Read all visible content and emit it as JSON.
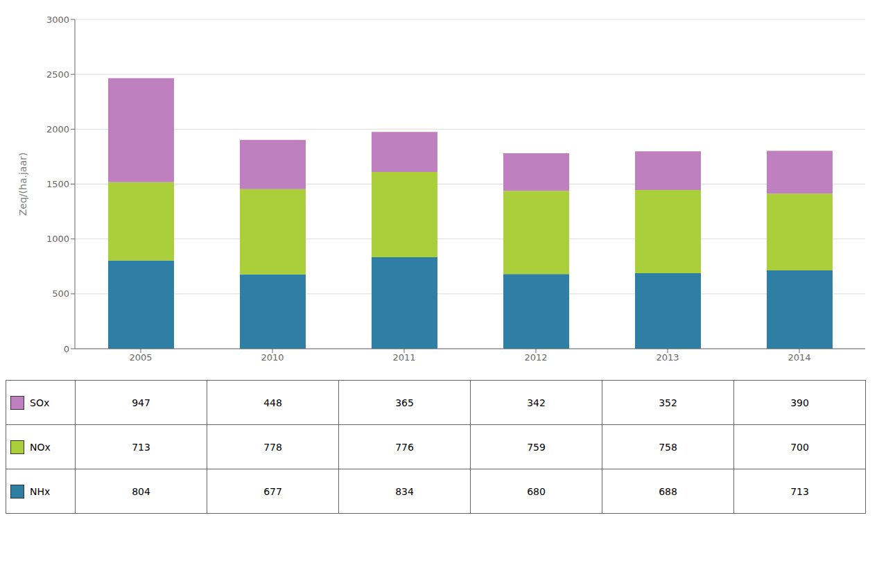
{
  "chart_data": {
    "type": "bar",
    "stacked": true,
    "grid": true,
    "ylabel": "Zeq/(ha.jaar)",
    "categories": [
      "2005",
      "2010",
      "2011",
      "2012",
      "2013",
      "2014"
    ],
    "series": [
      {
        "name": "NHx",
        "color": "#2e7fa3",
        "values": [
          804,
          677,
          834,
          680,
          688,
          713
        ]
      },
      {
        "name": "NOx",
        "color": "#aacf3a",
        "values": [
          713,
          778,
          776,
          759,
          758,
          700
        ]
      },
      {
        "name": "SOx",
        "color": "#bf80c0",
        "values": [
          947,
          448,
          365,
          342,
          352,
          390
        ]
      }
    ],
    "ylim": [
      0,
      3000
    ],
    "yticks": [
      0,
      500,
      1000,
      1500,
      2000,
      2500,
      3000
    ],
    "table_rows": [
      "SOx",
      "NOx",
      "NHx"
    ]
  }
}
